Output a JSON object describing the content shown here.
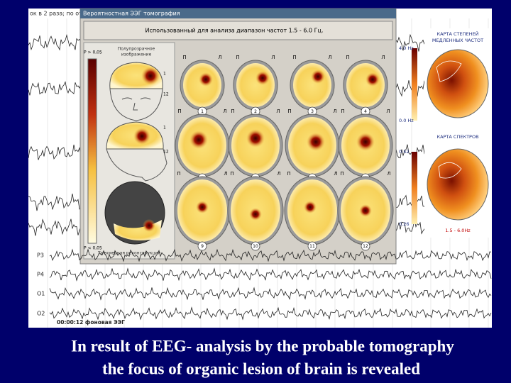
{
  "slide": {
    "caption_lines": [
      "In result of EEG- analysis by the probable tomography",
      "the focus of organic lesion of brain is revealed"
    ]
  },
  "screenshot": {
    "background_note": "ок в 2 раза; по отв",
    "window": {
      "title": "Вероятностная ЭЭГ томография",
      "frequency_range": "Использованный для анализа диапазон частот 1.5 - 6.0 Гц.",
      "left_panel": {
        "p_high": "P > 0,05",
        "p_low": "P < 0,05",
        "translucent_label": [
          "Полупрозрачное",
          "изображение"
        ],
        "reconstruction_label": "Трехмерная реконструкция",
        "level_marks": [
          "1",
          "12",
          "1",
          "12"
        ]
      },
      "side_left": "П",
      "side_right": "Л",
      "slices": [
        "1",
        "2",
        "3",
        "4",
        "5",
        "6",
        "7",
        "8",
        "9",
        "10",
        "11",
        "12"
      ]
    },
    "maps": {
      "slow_title": [
        "КАРТА СТЕПЕНЕЙ",
        "МЕДЛЕННЫХ ЧАСТОТ"
      ],
      "slow_max": "4.0 Hz",
      "slow_min": "0.0 Hz",
      "spectrum_title": "КАРТА СПЕКТРОВ",
      "spectrum_max": "0.52",
      "spectrum_min": "0.26",
      "spectrum_range": "1.5 - 6.0Hz"
    },
    "eeg": {
      "channels": [
        "P3",
        "P4",
        "O1",
        "O2"
      ],
      "status": "00:00:12 фоновая ЭЭГ"
    }
  }
}
